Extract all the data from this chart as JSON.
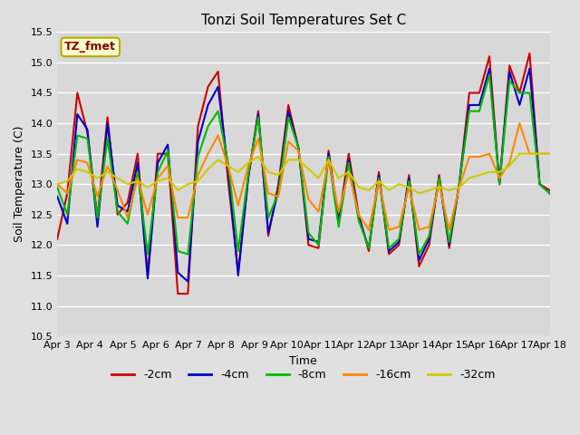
{
  "title": "Tonzi Soil Temperatures Set C",
  "xlabel": "Time",
  "ylabel": "Soil Temperature (C)",
  "ylim": [
    10.5,
    15.5
  ],
  "background_color": "#e0e0e0",
  "plot_bg_color": "#d8d8d8",
  "annotation_text": "TZ_fmet",
  "annotation_bg": "#ffffcc",
  "annotation_border": "#bbaa00",
  "annotation_text_color": "#880000",
  "x_labels": [
    "Apr 3",
    "Apr 4",
    "Apr 5",
    "Apr 6",
    "Apr 7",
    "Apr 8",
    "Apr 9",
    "Apr 10",
    "Apr 11",
    "Apr 12",
    "Apr 13",
    "Apr 14",
    "Apr 15",
    "Apr 16",
    "Apr 17",
    "Apr 18"
  ],
  "series": {
    "-2cm": {
      "color": "#cc0000",
      "lw": 1.5,
      "values": [
        12.1,
        12.85,
        14.5,
        13.85,
        12.45,
        14.1,
        12.5,
        12.7,
        13.5,
        11.5,
        13.5,
        13.5,
        11.2,
        11.2,
        13.95,
        14.6,
        14.85,
        13.05,
        11.55,
        13.1,
        14.2,
        12.15,
        13.0,
        14.3,
        13.6,
        12.0,
        11.95,
        13.55,
        12.4,
        13.5,
        12.5,
        11.9,
        13.2,
        11.85,
        12.0,
        13.15,
        11.65,
        12.0,
        13.15,
        11.95,
        13.0,
        14.5,
        14.5,
        15.1,
        13.0,
        14.95,
        14.5,
        15.15,
        13.0,
        12.9
      ]
    },
    "-4cm": {
      "color": "#0000cc",
      "lw": 1.5,
      "values": [
        12.8,
        12.35,
        14.15,
        13.9,
        12.3,
        14.0,
        12.65,
        12.55,
        13.35,
        11.45,
        13.35,
        13.65,
        11.55,
        11.4,
        13.7,
        14.3,
        14.6,
        13.25,
        11.5,
        13.1,
        14.15,
        12.2,
        12.9,
        14.2,
        13.6,
        12.1,
        12.05,
        13.5,
        12.35,
        13.4,
        12.45,
        11.95,
        13.15,
        11.9,
        12.05,
        13.1,
        11.75,
        12.1,
        13.1,
        12.0,
        13.0,
        14.3,
        14.3,
        14.9,
        13.0,
        14.85,
        14.3,
        14.9,
        13.0,
        12.85
      ]
    },
    "-8cm": {
      "color": "#00bb00",
      "lw": 1.5,
      "values": [
        12.95,
        12.5,
        13.8,
        13.75,
        12.45,
        13.75,
        12.55,
        12.35,
        13.2,
        11.85,
        13.2,
        13.55,
        11.9,
        11.85,
        13.45,
        13.95,
        14.2,
        13.35,
        11.9,
        13.15,
        14.1,
        12.45,
        12.85,
        14.1,
        13.6,
        12.2,
        12.0,
        13.45,
        12.3,
        13.35,
        12.4,
        11.95,
        13.1,
        11.95,
        12.1,
        13.05,
        11.85,
        12.15,
        13.1,
        12.05,
        13.0,
        14.2,
        14.2,
        14.8,
        13.0,
        14.7,
        14.5,
        14.5,
        13.0,
        12.85
      ]
    },
    "-16cm": {
      "color": "#ff8800",
      "lw": 1.5,
      "values": [
        13.0,
        12.85,
        13.4,
        13.35,
        12.8,
        13.3,
        12.9,
        12.45,
        13.1,
        12.5,
        13.1,
        13.3,
        12.45,
        12.45,
        13.15,
        13.5,
        13.8,
        13.3,
        12.65,
        13.3,
        13.75,
        12.85,
        12.8,
        13.7,
        13.55,
        12.75,
        12.55,
        13.4,
        12.55,
        13.2,
        12.5,
        12.25,
        13.05,
        12.25,
        12.3,
        12.95,
        12.25,
        12.3,
        13.0,
        12.25,
        12.95,
        13.45,
        13.45,
        13.5,
        13.1,
        13.35,
        14.0,
        13.5,
        13.5,
        13.5
      ]
    },
    "-32cm": {
      "color": "#cccc00",
      "lw": 1.5,
      "values": [
        13.0,
        13.05,
        13.25,
        13.2,
        13.1,
        13.2,
        13.1,
        13.0,
        13.05,
        12.95,
        13.05,
        13.1,
        12.9,
        13.0,
        13.05,
        13.25,
        13.4,
        13.3,
        13.2,
        13.35,
        13.45,
        13.2,
        13.15,
        13.4,
        13.4,
        13.25,
        13.1,
        13.4,
        13.1,
        13.2,
        12.95,
        12.9,
        13.05,
        12.9,
        13.0,
        12.95,
        12.85,
        12.9,
        12.95,
        12.9,
        12.95,
        13.1,
        13.15,
        13.2,
        13.2,
        13.3,
        13.5,
        13.5,
        13.5,
        13.5
      ]
    }
  },
  "legend_entries": [
    "-2cm",
    "-4cm",
    "-8cm",
    "-16cm",
    "-32cm"
  ],
  "legend_colors": [
    "#cc0000",
    "#0000cc",
    "#00bb00",
    "#ff8800",
    "#cccc00"
  ],
  "yticks": [
    10.5,
    11.0,
    11.5,
    12.0,
    12.5,
    13.0,
    13.5,
    14.0,
    14.5,
    15.0,
    15.5
  ]
}
